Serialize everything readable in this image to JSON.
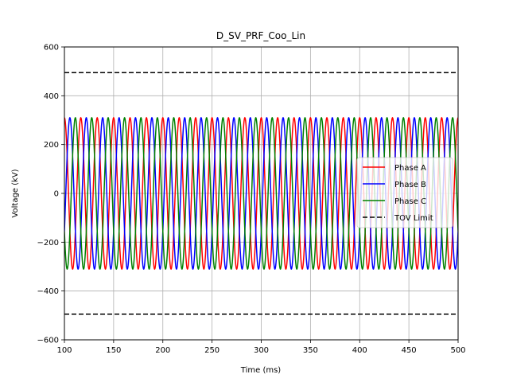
{
  "chart_data": {
    "type": "line",
    "title": "D_SV_PRF_Coo_Lin",
    "xlabel": "Time (ms)",
    "ylabel": "Voltage (kV)",
    "xlim": [
      100,
      500
    ],
    "ylim": [
      -600,
      600
    ],
    "xticks": [
      100,
      150,
      200,
      250,
      300,
      350,
      400,
      450,
      500
    ],
    "yticks": [
      -600,
      -400,
      -200,
      0,
      200,
      400,
      600
    ],
    "xtick_labels": [
      "100",
      "150",
      "200",
      "250",
      "300",
      "350",
      "400",
      "450",
      "500"
    ],
    "ytick_labels": [
      "−600",
      "−400",
      "−200",
      "0",
      "200",
      "400",
      "600"
    ],
    "grid": true,
    "legend_position": "center-right",
    "series": [
      {
        "name": "Phase A",
        "kind": "sine",
        "amplitude": 310,
        "frequency_hz": 60,
        "phase_deg": 90,
        "color": "#ff0000",
        "dash": false
      },
      {
        "name": "Phase B",
        "kind": "sine",
        "amplitude": 310,
        "frequency_hz": 60,
        "phase_deg": -30,
        "color": "#0000ff",
        "dash": false
      },
      {
        "name": "Phase C",
        "kind": "sine",
        "amplitude": 310,
        "frequency_hz": 60,
        "phase_deg": 210,
        "color": "#008000",
        "dash": false
      },
      {
        "name": "TOV Limit",
        "kind": "hlines",
        "values": [
          495,
          -495
        ],
        "color": "#000000",
        "dash": true
      }
    ]
  }
}
